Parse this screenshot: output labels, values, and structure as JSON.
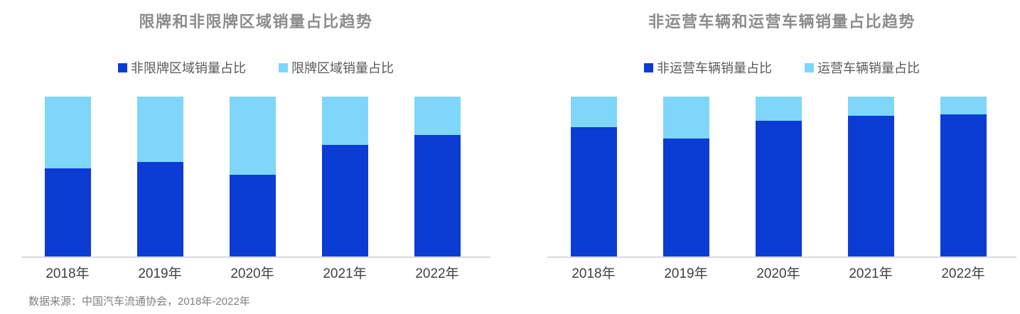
{
  "colors": {
    "primary_dark_blue": "#0b3cd4",
    "primary_light_blue": "#7ed6fa",
    "axis_line": "#d9d9d9",
    "title_text": "#8c8c8c",
    "legend_text": "#595959",
    "axis_label_text": "#404040",
    "source_text": "#7f7f7f"
  },
  "source_note": "数据来源：中国汽车流通协会，2018年-2022年",
  "chart_data": [
    {
      "type": "bar",
      "stacked": true,
      "stacked_to_100_percent": true,
      "title": "限牌和非限牌区域销量占比趋势",
      "categories": [
        "2018年",
        "2019年",
        "2020年",
        "2021年",
        "2022年"
      ],
      "series": [
        {
          "name": "非限牌区域销量占比",
          "color": "#0b3cd4",
          "values": [
            55,
            59,
            51,
            70,
            76
          ]
        },
        {
          "name": "限牌区域销量占比",
          "color": "#7ed6fa",
          "values": [
            45,
            41,
            49,
            30,
            24
          ]
        }
      ],
      "unit": "%",
      "ylim": [
        0,
        100
      ],
      "grid": false,
      "y_axis_visible": false,
      "legend_position": "top"
    },
    {
      "type": "bar",
      "stacked": true,
      "stacked_to_100_percent": true,
      "title": "非运营车辆和运营车辆销量占比趋势",
      "categories": [
        "2018年",
        "2019年",
        "2020年",
        "2021年",
        "2022年"
      ],
      "series": [
        {
          "name": "非运营车辆销量占比",
          "color": "#0b3cd4",
          "values": [
            81,
            74,
            85,
            88,
            89
          ]
        },
        {
          "name": "运营车辆销量占比",
          "color": "#7ed6fa",
          "values": [
            19,
            26,
            15,
            12,
            11
          ]
        }
      ],
      "unit": "%",
      "ylim": [
        0,
        100
      ],
      "grid": false,
      "y_axis_visible": false,
      "legend_position": "top"
    }
  ]
}
